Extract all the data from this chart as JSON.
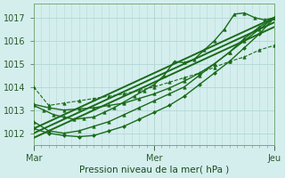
{
  "bg_color": "#d4eeee",
  "grid_color": "#b8d8d8",
  "line_color": "#1a6b1a",
  "xlabel": "Pression niveau de la mer( hPa )",
  "x_ticks": [
    0,
    48,
    96
  ],
  "x_tick_labels": [
    "Mar",
    "Mer",
    "Jeu"
  ],
  "ylim": [
    1011.5,
    1017.6
  ],
  "yticks": [
    1012,
    1013,
    1014,
    1015,
    1016,
    1017
  ],
  "xlim": [
    0,
    96
  ],
  "minor_xticks_step": 3,
  "lines": [
    {
      "x": [
        0,
        6,
        12,
        18,
        24,
        30,
        36,
        42,
        48,
        54,
        60,
        66,
        72,
        78,
        84,
        90,
        96
      ],
      "y": [
        1014.0,
        1013.2,
        1013.3,
        1013.4,
        1013.5,
        1013.6,
        1013.7,
        1013.85,
        1014.0,
        1014.2,
        1014.4,
        1014.6,
        1014.85,
        1015.1,
        1015.3,
        1015.6,
        1015.8
      ],
      "style": "--",
      "marker": "^",
      "markersize": 2.5,
      "linewidth": 0.8,
      "alpha": 1.0
    },
    {
      "x": [
        0,
        6,
        12,
        18,
        24,
        30,
        36,
        42,
        48,
        54,
        60,
        66,
        72,
        78,
        84,
        90,
        96
      ],
      "y": [
        1012.5,
        1012.1,
        1012.0,
        1012.1,
        1012.3,
        1012.5,
        1012.8,
        1013.1,
        1013.4,
        1013.7,
        1014.0,
        1014.5,
        1015.0,
        1015.5,
        1016.0,
        1016.5,
        1017.0
      ],
      "style": "-",
      "marker": "^",
      "markersize": 2.5,
      "linewidth": 1.0,
      "alpha": 1.0
    },
    {
      "x": [
        0,
        4,
        8,
        12,
        16,
        20,
        24,
        28,
        32,
        36,
        40,
        44,
        48,
        52,
        56,
        60,
        64,
        68,
        72,
        76,
        80,
        84,
        88,
        92,
        96
      ],
      "y": [
        1013.2,
        1013.0,
        1012.8,
        1012.7,
        1012.6,
        1012.65,
        1012.7,
        1012.9,
        1013.1,
        1013.35,
        1013.6,
        1013.85,
        1014.1,
        1014.5,
        1015.1,
        1015.05,
        1015.2,
        1015.6,
        1016.0,
        1016.5,
        1017.15,
        1017.2,
        1017.0,
        1016.9,
        1017.0
      ],
      "style": "-",
      "marker": "^",
      "markersize": 2.5,
      "linewidth": 1.0,
      "alpha": 1.0
    },
    {
      "x": [
        0,
        96
      ],
      "y": [
        1012.2,
        1017.0
      ],
      "style": "-",
      "marker": null,
      "markersize": 0,
      "linewidth": 1.4,
      "alpha": 1.0
    },
    {
      "x": [
        0,
        96
      ],
      "y": [
        1012.0,
        1016.8
      ],
      "style": "-",
      "marker": null,
      "markersize": 0,
      "linewidth": 1.4,
      "alpha": 1.0
    },
    {
      "x": [
        0,
        96
      ],
      "y": [
        1011.8,
        1016.6
      ],
      "style": "-",
      "marker": null,
      "markersize": 0,
      "linewidth": 1.4,
      "alpha": 1.0
    },
    {
      "x": [
        0,
        6,
        12,
        18,
        24,
        30,
        36,
        42,
        48,
        54,
        60,
        66,
        72,
        78,
        84,
        90,
        96
      ],
      "y": [
        1012.2,
        1012.0,
        1011.9,
        1011.85,
        1011.9,
        1012.1,
        1012.3,
        1012.6,
        1012.9,
        1013.2,
        1013.6,
        1014.1,
        1014.6,
        1015.1,
        1015.7,
        1016.3,
        1017.0
      ],
      "style": "-",
      "marker": "D",
      "markersize": 2.0,
      "linewidth": 1.0,
      "alpha": 1.0
    },
    {
      "x": [
        0,
        6,
        12,
        18,
        24,
        30,
        36,
        42,
        48,
        54,
        60,
        66,
        72,
        78,
        84,
        90,
        96
      ],
      "y": [
        1013.25,
        1013.1,
        1013.0,
        1013.05,
        1013.1,
        1013.2,
        1013.3,
        1013.5,
        1013.7,
        1013.95,
        1014.25,
        1014.6,
        1015.0,
        1015.5,
        1016.1,
        1016.6,
        1017.0
      ],
      "style": "-",
      "marker": "^",
      "markersize": 2.5,
      "linewidth": 1.0,
      "alpha": 1.0
    }
  ]
}
